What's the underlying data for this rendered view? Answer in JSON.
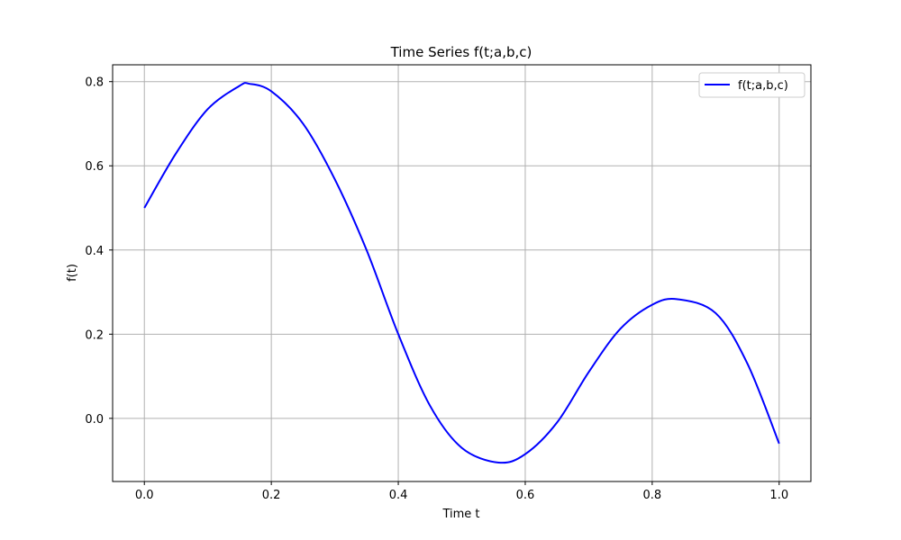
{
  "chart_data": {
    "type": "line",
    "title": "Time Series f(t;a,b,c)",
    "xlabel": "Time t",
    "ylabel": "f(t)",
    "xlim": [
      -0.05,
      1.05
    ],
    "ylim": [
      -0.15,
      0.84
    ],
    "xticks": [
      "0.0",
      "0.2",
      "0.4",
      "0.6",
      "0.8",
      "1.0"
    ],
    "yticks": [
      "0.0",
      "0.2",
      "0.4",
      "0.6",
      "0.8"
    ],
    "grid": true,
    "legend_position": "top-right",
    "series": [
      {
        "name": "f(t;a,b,c)",
        "color": "#0000ff",
        "x": [
          0.0,
          0.05,
          0.1,
          0.15,
          0.165,
          0.2,
          0.25,
          0.3,
          0.35,
          0.4,
          0.45,
          0.5,
          0.558,
          0.6,
          0.65,
          0.7,
          0.75,
          0.8,
          0.84,
          0.9,
          0.95,
          1.0
        ],
        "y": [
          0.5,
          0.63,
          0.735,
          0.79,
          0.795,
          0.777,
          0.7,
          0.568,
          0.4,
          0.2,
          0.03,
          -0.07,
          -0.105,
          -0.085,
          -0.01,
          0.11,
          0.213,
          0.27,
          0.283,
          0.25,
          0.13,
          -0.06
        ]
      }
    ]
  }
}
